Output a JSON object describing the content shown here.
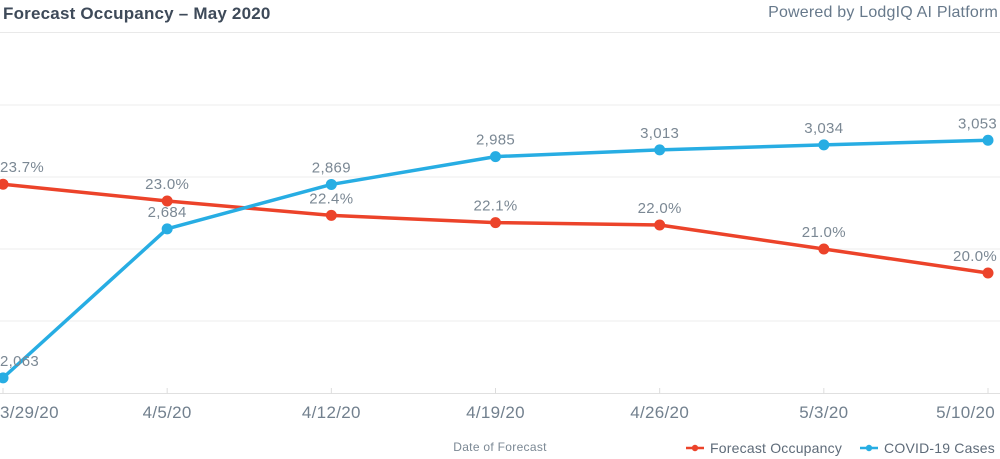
{
  "header": {
    "title": "Forecast Occupancy – May 2020",
    "powered_by": "Powered by LodgIQ AI Platform"
  },
  "chart_data": {
    "type": "line",
    "title": "Forecast Occupancy – May 2020",
    "xlabel": "Date of Forecast",
    "grid": true,
    "legend_position": "bottom-right",
    "categories": [
      "3/29/20",
      "4/5/20",
      "4/12/20",
      "4/19/20",
      "4/26/20",
      "5/3/20",
      "5/10/20"
    ],
    "series": [
      {
        "name": "Forecast Occupancy",
        "color": "#ec432a",
        "values": [
          23.7,
          23.0,
          22.4,
          22.1,
          22.0,
          21.0,
          20.0
        ],
        "labels": [
          "23.7%",
          "23.0%",
          "22.4%",
          "22.1%",
          "22.0%",
          "21.0%",
          "20.0%"
        ],
        "axis": {
          "min": 15,
          "max": 30
        }
      },
      {
        "name": "COVID-19 Cases",
        "color": "#27ade3",
        "values": [
          2063,
          2684,
          2869,
          2985,
          3013,
          3034,
          3053
        ],
        "labels": [
          "2,063",
          "2,684",
          "2,869",
          "2,985",
          "3,013",
          "3,034",
          "3,053"
        ],
        "axis": {
          "min": 2000,
          "max": 3500
        }
      }
    ]
  },
  "colors": {
    "title_text": "#3e4a59",
    "powered_text": "#67798b",
    "data_label_text": "#7b8894",
    "tick_label_text": "#72808e",
    "legend_text": "#5e6b79",
    "gridline": "#ededed",
    "axis_line": "#e0e0e0",
    "tick_mark": "#dcdcdc"
  }
}
